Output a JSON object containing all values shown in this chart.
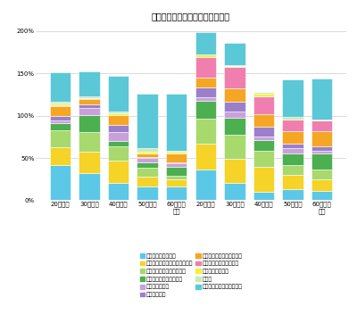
{
  "title": "グラフ６：第一子出産前の懸念点",
  "categories": [
    "20代男性",
    "30代男性",
    "40代男性",
    "50代男性",
    "60代以上\n男性",
    "20代女性",
    "30代女性",
    "40代女性",
    "50代女性",
    "60代以上\n女性"
  ],
  "series": [
    {
      "label": "金銭的な余裕がない",
      "color": "#5BC8E8",
      "values": [
        41.9,
        32.4,
        20.7,
        16.2,
        16.2,
        36.0,
        20.7,
        9.9,
        13.4,
        10.8
      ]
    },
    {
      "label": "ちゃんと育てられる自信がない",
      "color": "#F5D327",
      "values": [
        21.0,
        25.2,
        26.1,
        11.7,
        9.0,
        30.6,
        28.8,
        29.7,
        17.0,
        13.5
      ]
    },
    {
      "label": "自分の時間がなくなりそう",
      "color": "#A8D96C",
      "values": [
        20.0,
        22.5,
        17.1,
        10.8,
        3.6,
        29.7,
        27.9,
        18.9,
        10.7,
        12.0
      ]
    },
    {
      "label": "仕事との両立が難しそう",
      "color": "#4CAF50",
      "values": [
        8.6,
        20.7,
        6.3,
        6.3,
        10.8,
        21.6,
        19.8,
        12.6,
        14.3,
        18.9
      ]
    },
    {
      "label": "年齢的に厳しい",
      "color": "#C9A0DC",
      "values": [
        2.9,
        8.1,
        9.9,
        5.4,
        3.6,
        3.6,
        8.1,
        4.5,
        6.3,
        3.6
      ]
    },
    {
      "label": "子どもが苦手",
      "color": "#9B7FCA",
      "values": [
        4.8,
        4.5,
        9.0,
        0.9,
        1.8,
        11.7,
        11.7,
        11.7,
        5.4,
        4.5
      ]
    },
    {
      "label": "頼れる身内が近くにいない",
      "color": "#F5A623",
      "values": [
        12.4,
        6.3,
        11.7,
        3.6,
        9.9,
        11.7,
        15.3,
        14.4,
        14.3,
        18.9
      ]
    },
    {
      "label": "出産が怖い（女性のみ）",
      "color": "#F07FAF",
      "values": [
        1.0,
        0.9,
        0.0,
        0.0,
        0.0,
        24.3,
        25.2,
        20.7,
        14.3,
        11.7
      ]
    },
    {
      "label": "配偶者が望まない",
      "color": "#F5F03A",
      "values": [
        1.9,
        0.0,
        1.8,
        2.7,
        2.7,
        3.6,
        0.9,
        3.6,
        0.0,
        0.0
      ]
    },
    {
      "label": "その他",
      "color": "#C8EDAE",
      "values": [
        1.9,
        2.7,
        1.8,
        3.6,
        0.9,
        0.0,
        0.9,
        1.8,
        2.7,
        1.8
      ]
    },
    {
      "label": "特に当てはまるものはない",
      "color": "#5BC8D8",
      "values": [
        35.2,
        28.8,
        42.3,
        64.9,
        67.6,
        26.1,
        27.0,
        0.0,
        44.6,
        47.7
      ]
    }
  ],
  "ylim": [
    0,
    210
  ],
  "yticks": [
    0,
    50,
    100,
    150,
    200
  ],
  "ytick_labels": [
    "0%",
    "50%",
    "100%",
    "150%",
    "200%"
  ],
  "bar_width": 0.72,
  "figsize": [
    4.0,
    3.62
  ],
  "dpi": 100,
  "bg_color": "#ffffff",
  "legend_fontsize": 4.5,
  "axis_fontsize": 5,
  "title_fontsize": 7
}
